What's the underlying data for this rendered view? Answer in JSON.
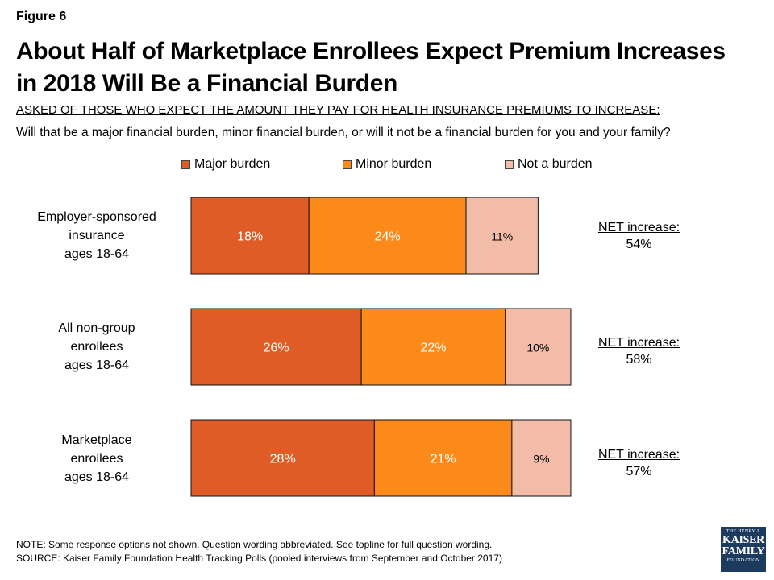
{
  "figure_label": "Figure 6",
  "title_line1": "About Half of Marketplace Enrollees Expect Premium Increases",
  "title_line2": "in 2018 Will Be a Financial Burden",
  "asked_text": "ASKED OF THOSE WHO EXPECT THE AMOUNT THEY PAY FOR HEALTH INSURANCE PREMIUMS TO INCREASE:",
  "question_text": "Will that be a major financial burden, minor financial burden, or will it not be a financial burden for you and your family?",
  "note_line1": "NOTE: Some response options not shown. Question wording abbreviated. See topline for full question wording.",
  "note_line2": "SOURCE: Kaiser Family Foundation Health Tracking Polls (pooled interviews from September and October 2017)",
  "logo": {
    "line1": "THE HENRY J.",
    "line2": "KAISER",
    "line3": "FAMILY",
    "line4": "FOUNDATION"
  },
  "chart_data": {
    "type": "bar",
    "orientation": "horizontal",
    "stacked": true,
    "title": "About Half of Marketplace Enrollees Expect Premium Increases in 2018 Will Be a Financial Burden",
    "categories": [
      [
        "Employer-sponsored",
        "insurance",
        "ages 18-64"
      ],
      [
        "All non-group",
        "enrollees",
        "ages 18-64"
      ],
      [
        "Marketplace",
        "enrollees",
        "ages 18-64"
      ]
    ],
    "series": [
      {
        "name": "Major burden",
        "color": "#e05c27",
        "values": [
          18,
          26,
          28
        ]
      },
      {
        "name": "Minor burden",
        "color": "#fb8a1a",
        "values": [
          24,
          22,
          21
        ]
      },
      {
        "name": "Not a burden",
        "color": "#f3bca8",
        "values": [
          11,
          10,
          9
        ]
      }
    ],
    "net_label": "NET increase:",
    "net_values": [
      "54%",
      "58%",
      "57%"
    ],
    "value_suffix": "%",
    "legend_position": "top",
    "grid": false
  }
}
